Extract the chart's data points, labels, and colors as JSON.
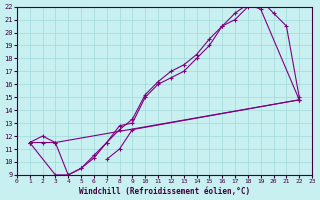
{
  "xlabel": "Windchill (Refroidissement éolien,°C)",
  "background_color": "#c8f0f0",
  "line_color": "#800080",
  "xlim": [
    0,
    23
  ],
  "ylim": [
    9,
    22
  ],
  "xticks": [
    0,
    1,
    2,
    3,
    4,
    5,
    6,
    7,
    8,
    9,
    10,
    11,
    12,
    13,
    14,
    15,
    16,
    17,
    18,
    19,
    20,
    21,
    22,
    23
  ],
  "yticks": [
    9,
    10,
    11,
    12,
    13,
    14,
    15,
    16,
    17,
    18,
    19,
    20,
    21,
    22
  ],
  "line1_x": [
    1,
    2,
    3,
    4,
    5,
    6,
    7,
    8,
    9,
    10,
    11,
    12,
    13,
    14,
    15,
    16,
    17,
    18,
    19,
    22
  ],
  "line1_y": [
    11.5,
    12.0,
    11.5,
    9.0,
    9.5,
    10.5,
    11.5,
    12.8,
    13.0,
    15.0,
    16.0,
    16.5,
    17.0,
    18.0,
    19.0,
    20.5,
    21.5,
    22.2,
    21.8,
    14.8
  ],
  "line2_x": [
    1,
    3,
    4,
    5,
    6,
    7,
    8,
    9,
    10,
    11,
    12,
    13,
    14,
    15,
    16,
    17,
    18,
    19,
    20,
    21,
    22
  ],
  "line2_y": [
    11.5,
    9.0,
    9.0,
    9.5,
    10.3,
    11.5,
    12.5,
    13.3,
    15.2,
    16.2,
    17.0,
    17.5,
    18.3,
    19.5,
    20.5,
    21.0,
    22.0,
    22.5,
    21.5,
    20.5,
    15.0
  ],
  "line3_x": [
    1,
    2,
    3,
    22
  ],
  "line3_y": [
    11.5,
    11.5,
    11.5,
    14.8
  ],
  "line4_x": [
    7,
    8,
    9,
    22
  ],
  "line4_y": [
    10.2,
    11.0,
    12.5,
    14.8
  ]
}
